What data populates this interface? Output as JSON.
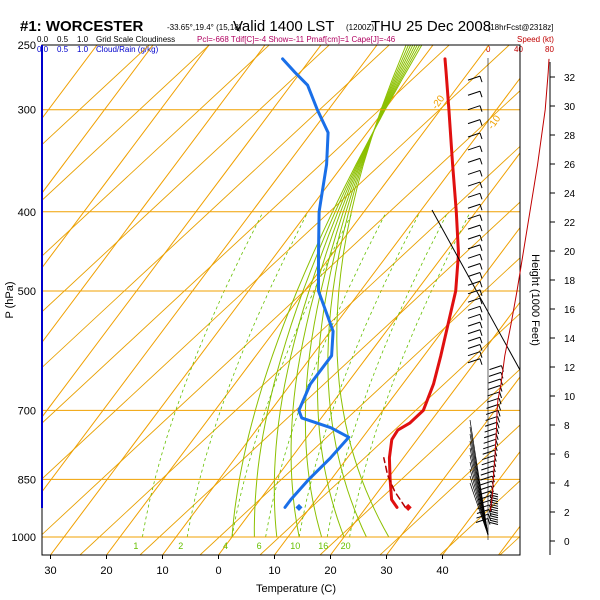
{
  "header": {
    "station": "#1: WORCESTER",
    "coords": "-33.65°,19.4° (15,18)",
    "valid": "Valid 1400 LST",
    "utc": "(1200Z)",
    "date": "THU 25 Dec 2008",
    "forecast": "[18hrFcst@2318z]"
  },
  "legend": {
    "cloud_levels_black": [
      "0.0",
      "0.5",
      "1.0"
    ],
    "cloud_label_black": "Grid Scale Cloudiness",
    "cloud_levels_blue": [
      "0.0",
      "0.5",
      "1.0"
    ],
    "cloud_label_blue": "Cloud/Rain (g/kg)",
    "indices": "Pcl=-668 Tdif[C]=-4 Show=-11 Pmaf[cm]=1 Cape[J]=-46",
    "speed_label": "Speed (kt)",
    "speed_ticks": [
      "0",
      "40",
      "80"
    ]
  },
  "colors": {
    "temperature": "#e01010",
    "dewpoint": "#1a6fe8",
    "isotherm": "#f0a000",
    "dry_adiabat": "#e8a000",
    "moist_adiabat": "#8cc000",
    "mixing_ratio": "#66c000",
    "speed_line": "#c00000",
    "parcel": "#b00000"
  },
  "chart_data": {
    "type": "line",
    "title": "#1: WORCESTER Valid 1400 LST THU 25 Dec 2008",
    "xlabel": "Temperature (C)",
    "ylabel": "P (hPa)",
    "y2label": "Height (1000 Feet)",
    "x_tick_labels": [
      "30",
      "20",
      "10",
      "0",
      "10",
      "20",
      "30",
      "40"
    ],
    "x_ticks": [
      -30,
      -20,
      -10,
      0,
      10,
      20,
      30,
      40
    ],
    "y_ticks": [
      250,
      300,
      400,
      500,
      700,
      850,
      1000
    ],
    "height_ticks": [
      0,
      2,
      4,
      6,
      8,
      10,
      12,
      14,
      16,
      18,
      20,
      22,
      24,
      26,
      28,
      30,
      32
    ],
    "isotherm_labels": [
      {
        "t": -20,
        "text": "-20"
      },
      {
        "t": -10,
        "text": "-10"
      },
      {
        "t": 0,
        "text": "0"
      },
      {
        "t": 10,
        "text": "10"
      }
    ],
    "mixing_ratio_labels": [
      "1",
      "2",
      "4",
      "6",
      "10",
      "16",
      "20"
    ],
    "series": [
      {
        "key": "temperature",
        "points": [
          [
            920,
            25.5
          ],
          [
            900,
            23.5
          ],
          [
            850,
            20.5
          ],
          [
            800,
            17.5
          ],
          [
            760,
            15.5
          ],
          [
            740,
            15.3
          ],
          [
            725,
            16.5
          ],
          [
            700,
            17.2
          ],
          [
            650,
            15.5
          ],
          [
            600,
            13.0
          ],
          [
            500,
            7.0
          ],
          [
            450,
            2.5
          ],
          [
            400,
            -3.5
          ],
          [
            350,
            -10.5
          ],
          [
            300,
            -18.5
          ],
          [
            270,
            -24.0
          ],
          [
            260,
            -26.0
          ]
        ]
      },
      {
        "key": "dewpoint",
        "points": [
          [
            920,
            5.5
          ],
          [
            900,
            5.5
          ],
          [
            850,
            6.0
          ],
          [
            800,
            7.0
          ],
          [
            755,
            7.5
          ],
          [
            735,
            3.0
          ],
          [
            715,
            -3.5
          ],
          [
            700,
            -5.0
          ],
          [
            650,
            -6.5
          ],
          [
            600,
            -6.5
          ],
          [
            560,
            -9.5
          ],
          [
            500,
            -17.5
          ],
          [
            450,
            -22.5
          ],
          [
            400,
            -28.0
          ],
          [
            350,
            -33.0
          ],
          [
            320,
            -37.0
          ],
          [
            300,
            -42.0
          ],
          [
            280,
            -47.0
          ],
          [
            270,
            -51.0
          ],
          [
            260,
            -55.0
          ]
        ]
      },
      {
        "key": "parcel",
        "points": [
          [
            920,
            27.0
          ],
          [
            880,
            23.0
          ],
          [
            840,
            19.5
          ],
          [
            800,
            16.5
          ]
        ]
      }
    ],
    "surface_points": [
      {
        "key": "temperature_sfc",
        "p": 920,
        "t": 27.5
      },
      {
        "key": "dewpoint_sfc",
        "p": 920,
        "t": 8.0
      }
    ],
    "wind_speed_kt": [
      [
        930,
        3
      ],
      [
        900,
        5
      ],
      [
        880,
        6
      ],
      [
        850,
        7
      ],
      [
        820,
        8
      ],
      [
        800,
        9
      ],
      [
        770,
        10
      ],
      [
        740,
        11
      ],
      [
        700,
        12
      ],
      [
        680,
        13
      ],
      [
        650,
        17
      ],
      [
        600,
        22
      ],
      [
        550,
        30
      ],
      [
        500,
        38
      ],
      [
        450,
        46
      ],
      [
        400,
        55
      ],
      [
        350,
        65
      ],
      [
        300,
        75
      ],
      [
        270,
        79
      ],
      [
        260,
        80
      ]
    ]
  }
}
